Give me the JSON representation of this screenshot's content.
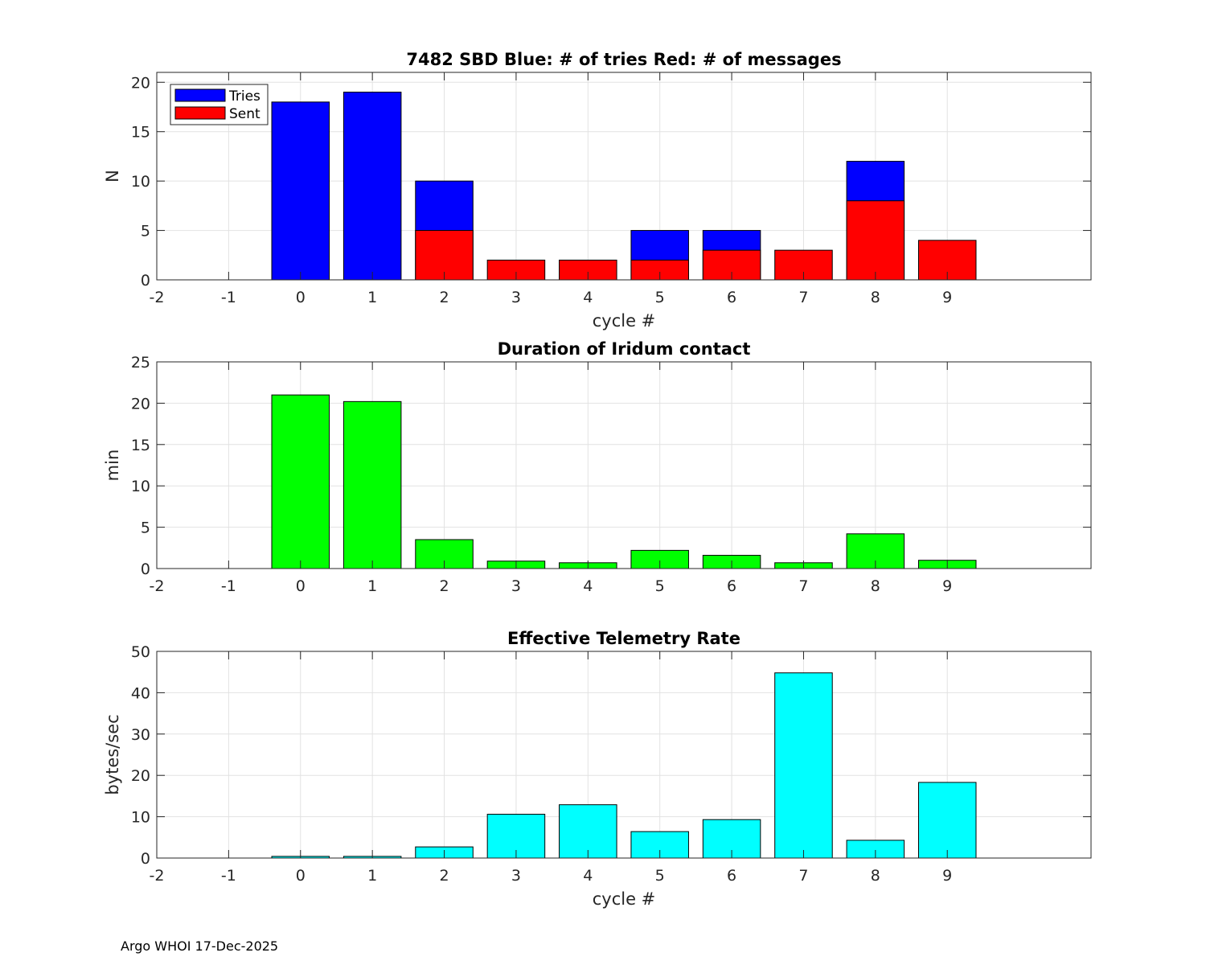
{
  "footer": "Argo WHOI 17-Dec-2025",
  "chart_data": [
    {
      "type": "bar",
      "title": "7482 SBD  Blue: # of tries   Red: # of messages",
      "xlabel": "cycle #",
      "ylabel": "N",
      "xlim": [
        -2,
        11
      ],
      "ylim": [
        0,
        21
      ],
      "xticks": [
        -2,
        -1,
        0,
        1,
        2,
        3,
        4,
        5,
        6,
        7,
        8,
        9
      ],
      "yticks": [
        0,
        5,
        10,
        15,
        20
      ],
      "grid": true,
      "legend": "top-left",
      "categories": [
        0,
        1,
        2,
        3,
        4,
        5,
        6,
        7,
        8,
        9
      ],
      "series": [
        {
          "name": "Tries",
          "color": "#0000ff",
          "values": [
            18,
            19,
            10,
            0,
            0,
            5,
            5,
            0,
            12,
            0
          ]
        },
        {
          "name": "Sent",
          "color": "#ff0000",
          "values": [
            0,
            0,
            5,
            2,
            2,
            2,
            3,
            3,
            8,
            4
          ]
        }
      ]
    },
    {
      "type": "bar",
      "title": "Duration of Iridum contact",
      "xlabel": "",
      "ylabel": "min",
      "xlim": [
        -2,
        11
      ],
      "ylim": [
        0,
        25
      ],
      "xticks": [
        -2,
        -1,
        0,
        1,
        2,
        3,
        4,
        5,
        6,
        7,
        8,
        9
      ],
      "yticks": [
        0,
        5,
        10,
        15,
        20,
        25
      ],
      "grid": true,
      "categories": [
        0,
        1,
        2,
        3,
        4,
        5,
        6,
        7,
        8,
        9
      ],
      "series": [
        {
          "color": "#00ff00",
          "values": [
            21.0,
            20.2,
            3.5,
            0.9,
            0.7,
            2.2,
            1.6,
            0.7,
            4.2,
            1.0
          ]
        }
      ]
    },
    {
      "type": "bar",
      "title": "Effective Telemetry Rate",
      "xlabel": "cycle #",
      "ylabel": "bytes/sec",
      "xlim": [
        -2,
        11
      ],
      "ylim": [
        0,
        50
      ],
      "xticks": [
        -2,
        -1,
        0,
        1,
        2,
        3,
        4,
        5,
        6,
        7,
        8,
        9
      ],
      "yticks": [
        0,
        10,
        20,
        30,
        40,
        50
      ],
      "grid": true,
      "categories": [
        0,
        1,
        2,
        3,
        4,
        5,
        6,
        7,
        8,
        9
      ],
      "series": [
        {
          "color": "#00ffff",
          "values": [
            0.4,
            0.4,
            2.7,
            10.6,
            12.9,
            6.4,
            9.3,
            44.8,
            4.3,
            18.3
          ]
        }
      ]
    }
  ]
}
